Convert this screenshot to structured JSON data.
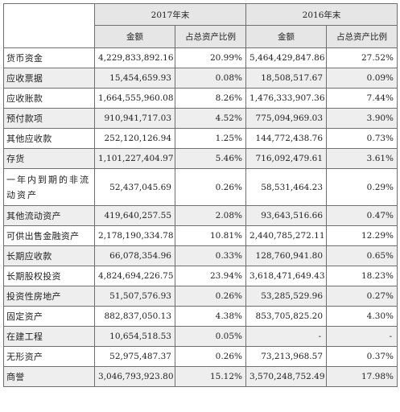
{
  "header": {
    "year_2017": "2017年末",
    "year_2016": "2016年末",
    "amount_label": "金额",
    "ratio_label": "占总资产比例"
  },
  "rows": [
    {
      "item": "货币资金",
      "amt_2017": "4,229,833,892.16",
      "ratio_2017": "20.99%",
      "amt_2016": "5,464,429,847.86",
      "ratio_2016": "27.52%"
    },
    {
      "item": "应收票据",
      "amt_2017": "15,454,659.93",
      "ratio_2017": "0.08%",
      "amt_2016": "18,508,517.67",
      "ratio_2016": "0.09%"
    },
    {
      "item": "应收账款",
      "amt_2017": "1,664,555,960.08",
      "ratio_2017": "8.26%",
      "amt_2016": "1,476,333,907.36",
      "ratio_2016": "7.44%"
    },
    {
      "item": "预付款项",
      "amt_2017": "910,941,717.03",
      "ratio_2017": "4.52%",
      "amt_2016": "775,094,969.03",
      "ratio_2016": "3.90%"
    },
    {
      "item": "其他应收款",
      "amt_2017": "252,120,126.94",
      "ratio_2017": "1.25%",
      "amt_2016": "144,772,438.76",
      "ratio_2016": "0.73%"
    },
    {
      "item": "存货",
      "amt_2017": "1,101,227,404.97",
      "ratio_2017": "5.46%",
      "amt_2016": "716,092,479.61",
      "ratio_2016": "3.61%"
    },
    {
      "item": "一年内到期的非流动资产",
      "amt_2017": "52,437,045.69",
      "ratio_2017": "0.26%",
      "amt_2016": "58,531,464.23",
      "ratio_2016": "0.29%"
    },
    {
      "item": "其他流动资产",
      "amt_2017": "419,640,257.55",
      "ratio_2017": "2.08%",
      "amt_2016": "93,643,516.66",
      "ratio_2016": "0.47%"
    },
    {
      "item": "可供出售金融资产",
      "amt_2017": "2,178,190,334.78",
      "ratio_2017": "10.81%",
      "amt_2016": "2,440,785,272.11",
      "ratio_2016": "12.29%"
    },
    {
      "item": "长期应收款",
      "amt_2017": "66,078,354.96",
      "ratio_2017": "0.33%",
      "amt_2016": "128,760,941.80",
      "ratio_2016": "0.65%"
    },
    {
      "item": "长期股权投资",
      "amt_2017": "4,824,694,226.75",
      "ratio_2017": "23.94%",
      "amt_2016": "3,618,471,649.43",
      "ratio_2016": "18.23%"
    },
    {
      "item": "投资性房地产",
      "amt_2017": "51,507,576.93",
      "ratio_2017": "0.26%",
      "amt_2016": "53,285,529.96",
      "ratio_2016": "0.27%"
    },
    {
      "item": "固定资产",
      "amt_2017": "882,837,050.13",
      "ratio_2017": "4.38%",
      "amt_2016": "853,705,825.20",
      "ratio_2016": "4.30%"
    },
    {
      "item": "在建工程",
      "amt_2017": "10,654,518.53",
      "ratio_2017": "0.05%",
      "amt_2016": "-",
      "ratio_2016": "-"
    },
    {
      "item": "无形资产",
      "amt_2017": "52,975,487.37",
      "ratio_2017": "0.26%",
      "amt_2016": "73,213,968.57",
      "ratio_2016": "0.37%"
    },
    {
      "item": "商誉",
      "amt_2017": "3,046,793,923.80",
      "ratio_2017": "15.12%",
      "amt_2016": "3,570,248,752.49",
      "ratio_2016": "17.98%"
    }
  ]
}
